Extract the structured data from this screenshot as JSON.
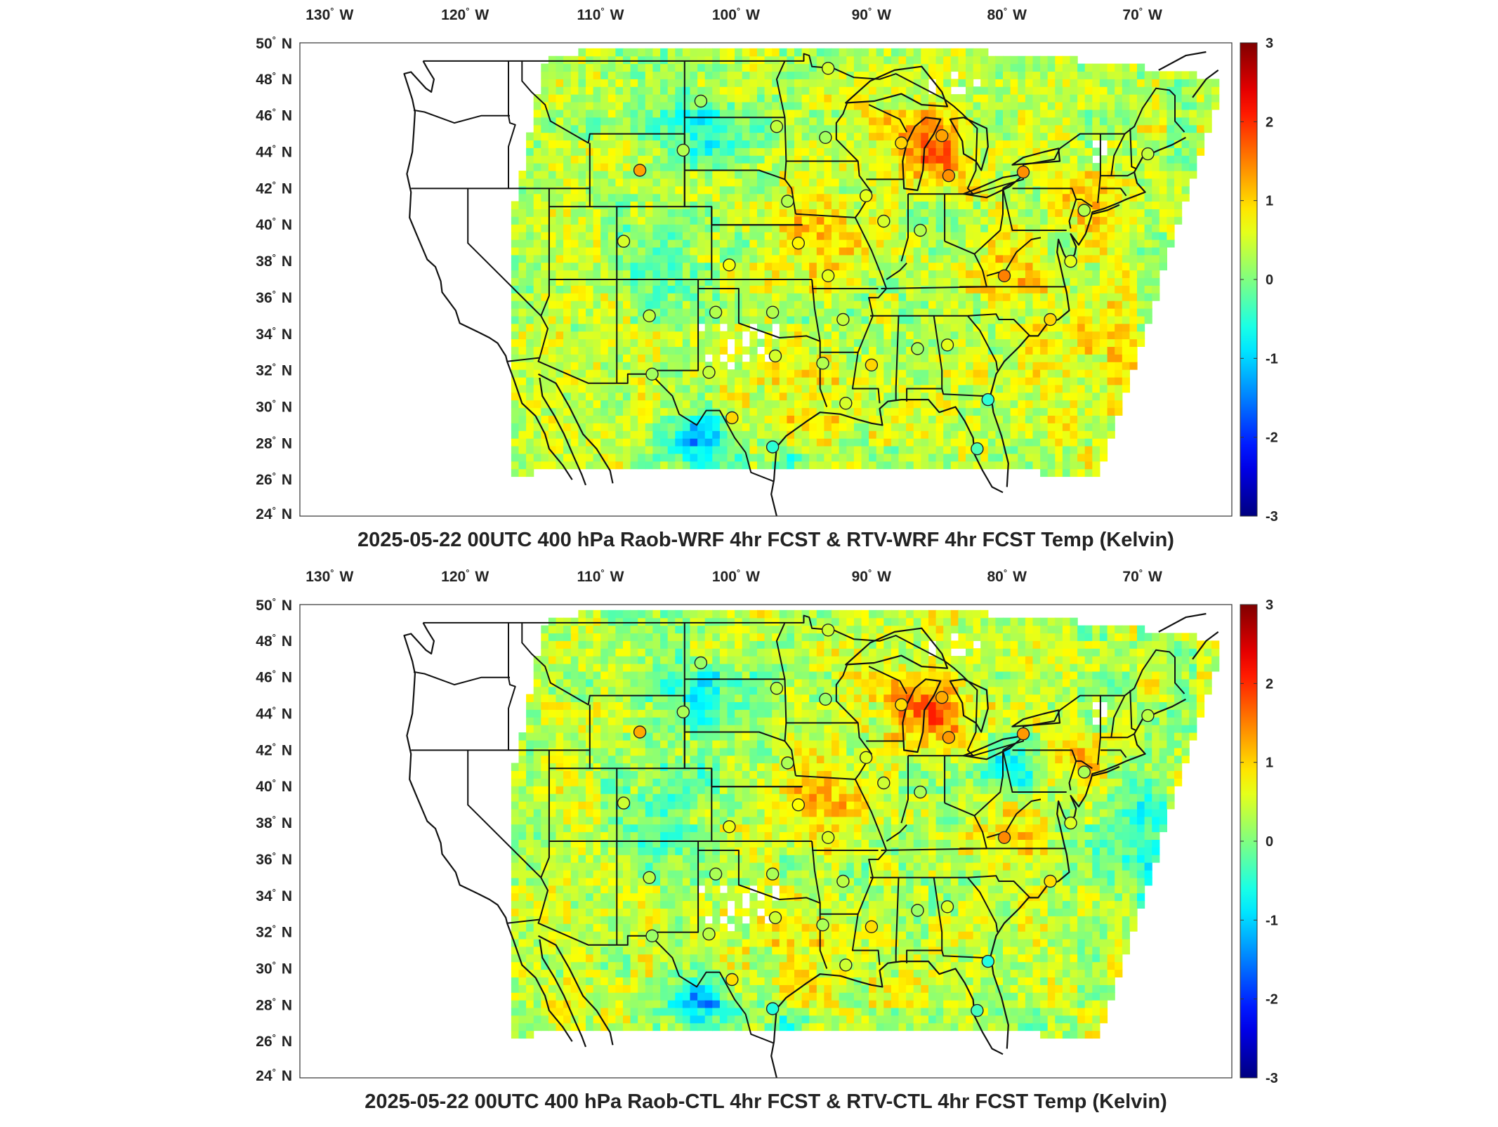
{
  "maps": [
    {
      "title": "2025-05-22 00UTC 400 hPa Raob-WRF 4hr FCST & RTV-WRF 4hr FCST Temp (Kelvin)",
      "variant": "wrf"
    },
    {
      "title": "2025-05-22 00UTC 400 hPa Raob-CTL 4hr FCST & RTV-CTL 4hr FCST Temp (Kelvin)",
      "variant": "ctl"
    }
  ],
  "axes": {
    "lon_ticks": [
      "130",
      "120",
      "110",
      "100",
      "90",
      "80",
      "70"
    ],
    "lon_suffix": "W",
    "lat_ticks": [
      "50",
      "48",
      "46",
      "44",
      "42",
      "40",
      "38",
      "36",
      "34",
      "32",
      "30",
      "28",
      "26",
      "24"
    ],
    "lat_suffix": "N",
    "degree_symbol": "°"
  },
  "colorbar": {
    "ticks": [
      "3",
      "2",
      "1",
      "0",
      "-1",
      "-2",
      "-3"
    ],
    "colormap": "jet",
    "range": [
      -3,
      3
    ]
  },
  "stations": [
    {
      "lon": -93.4,
      "lat": 48.6,
      "diff": 0.5
    },
    {
      "lon": -102.8,
      "lat": 46.8,
      "diff": 0.2
    },
    {
      "lon": -97.2,
      "lat": 45.4,
      "diff": 0.4
    },
    {
      "lon": -93.6,
      "lat": 44.8,
      "diff": 0.2
    },
    {
      "lon": -104.1,
      "lat": 44.1,
      "diff": 0.3
    },
    {
      "lon": -107.3,
      "lat": 43.0,
      "diff": 1.3
    },
    {
      "lon": -88.0,
      "lat": 44.5,
      "diff": 1.0
    },
    {
      "lon": -85.0,
      "lat": 44.9,
      "diff": 1.3
    },
    {
      "lon": -84.5,
      "lat": 42.7,
      "diff": 1.4
    },
    {
      "lon": -79.0,
      "lat": 42.9,
      "diff": 1.4
    },
    {
      "lon": -69.8,
      "lat": 43.9,
      "diff": 0.4
    },
    {
      "lon": -90.6,
      "lat": 41.6,
      "diff": 0.6
    },
    {
      "lon": -96.4,
      "lat": 41.3,
      "diff": 0.3
    },
    {
      "lon": -89.3,
      "lat": 40.2,
      "diff": 0.5
    },
    {
      "lon": -86.6,
      "lat": 39.7,
      "diff": 0.3
    },
    {
      "lon": -108.5,
      "lat": 39.1,
      "diff": 0.5
    },
    {
      "lon": -95.6,
      "lat": 39.0,
      "diff": 0.8
    },
    {
      "lon": -100.7,
      "lat": 37.8,
      "diff": 0.7
    },
    {
      "lon": -93.4,
      "lat": 37.2,
      "diff": 0.6
    },
    {
      "lon": -80.4,
      "lat": 37.2,
      "diff": 1.5
    },
    {
      "lon": -106.6,
      "lat": 35.0,
      "diff": 0.4
    },
    {
      "lon": -101.7,
      "lat": 35.2,
      "diff": 0.3
    },
    {
      "lon": -97.5,
      "lat": 35.2,
      "diff": 0.3
    },
    {
      "lon": -92.3,
      "lat": 34.8,
      "diff": 0.4
    },
    {
      "lon": -86.8,
      "lat": 33.2,
      "diff": 0.2
    },
    {
      "lon": -84.6,
      "lat": 33.4,
      "diff": 0.6
    },
    {
      "lon": -97.3,
      "lat": 32.8,
      "diff": 0.5
    },
    {
      "lon": -93.8,
      "lat": 32.4,
      "diff": 0.3
    },
    {
      "lon": -90.2,
      "lat": 32.3,
      "diff": 1.0
    },
    {
      "lon": -106.4,
      "lat": 31.8,
      "diff": 0.2
    },
    {
      "lon": -102.2,
      "lat": 31.9,
      "diff": 0.4
    },
    {
      "lon": -100.5,
      "lat": 29.4,
      "diff": 1.0
    },
    {
      "lon": -92.1,
      "lat": 30.2,
      "diff": 0.5
    },
    {
      "lon": -77.0,
      "lat": 34.8,
      "diff": 1.0
    },
    {
      "lon": -81.6,
      "lat": 30.4,
      "diff": -0.5
    },
    {
      "lon": -82.4,
      "lat": 27.7,
      "diff": -0.3
    },
    {
      "lon": -97.5,
      "lat": 27.8,
      "diff": -0.5
    },
    {
      "lon": -75.5,
      "lat": 38.0,
      "diff": 0.6
    },
    {
      "lon": -74.5,
      "lat": 40.8,
      "diff": 0.3
    }
  ]
}
